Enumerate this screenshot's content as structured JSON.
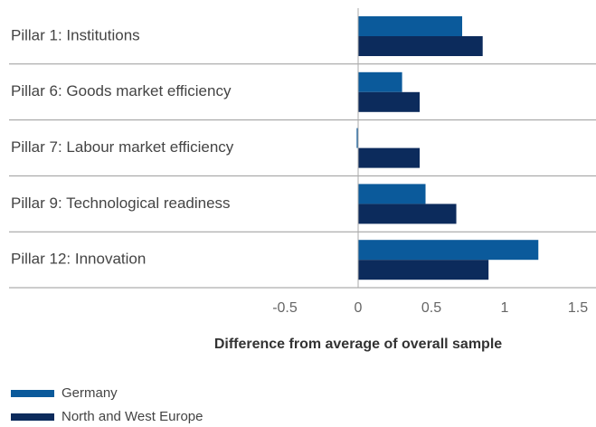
{
  "chart_data": {
    "type": "bar",
    "orientation": "horizontal",
    "xlabel": "Difference from average of overall sample",
    "categories": [
      "Pillar 1: Institutions",
      "Pillar 6: Goods market efficiency",
      "Pillar 7: Labour market efficiency",
      "Pillar 9: Technological readiness",
      "Pillar 12: Innovation"
    ],
    "series": [
      {
        "name": "Germany",
        "color": "#0b5a9b",
        "values": [
          0.71,
          0.3,
          -0.01,
          0.46,
          1.23
        ]
      },
      {
        "name": "North and West Europe",
        "color": "#0c2b5c",
        "values": [
          0.85,
          0.42,
          0.42,
          0.67,
          0.89
        ]
      }
    ],
    "xlim": [
      -0.5,
      1.5
    ],
    "xticks": [
      -0.5,
      0,
      0.5,
      1,
      1.5
    ],
    "legend": "bottom-left"
  }
}
